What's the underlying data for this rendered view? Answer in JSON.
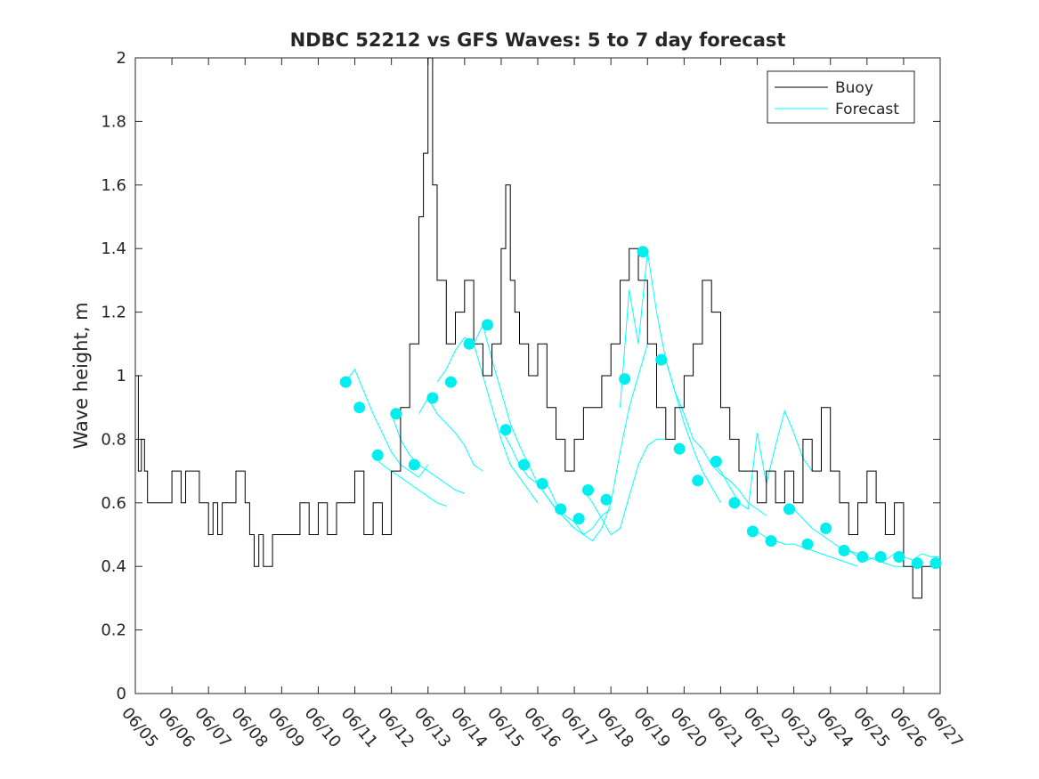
{
  "chart_data": {
    "type": "line",
    "title": "NDBC 52212 vs GFS Waves: 5 to 7 day forecast",
    "xlabel": "",
    "ylabel": "Wave height, m",
    "xlim": [
      "06/05",
      "06/27"
    ],
    "ylim": [
      0,
      2
    ],
    "x_ticks": [
      "06/05",
      "06/06",
      "06/07",
      "06/08",
      "06/09",
      "06/10",
      "06/11",
      "06/12",
      "06/13",
      "06/14",
      "06/15",
      "06/16",
      "06/17",
      "06/18",
      "06/19",
      "06/20",
      "06/21",
      "06/22",
      "06/23",
      "06/24",
      "06/25",
      "06/26",
      "06/27"
    ],
    "y_ticks": [
      0,
      0.2,
      0.4,
      0.6,
      0.8,
      1,
      1.2,
      1.4,
      1.6,
      1.8,
      2
    ],
    "y_tick_labels": [
      "0",
      "0.2",
      "0.4",
      "0.6",
      "0.8",
      "1",
      "1.2",
      "1.4",
      "1.6",
      "1.8",
      "2"
    ],
    "legend_position": "top-right",
    "grid": false,
    "colors": {
      "buoy": "#000000",
      "forecast": "#00ffff",
      "marker": "#00eeee"
    },
    "series": [
      {
        "name": "Buoy",
        "style": "line",
        "x": [
          "06/05 00:00",
          "06/05 02:00",
          "06/05 04:00",
          "06/05 06:00",
          "06/05 08:00",
          "06/05 12:00",
          "06/06 00:00",
          "06/06 06:00",
          "06/06 09:00",
          "06/06 12:00",
          "06/06 18:00",
          "06/07 00:00",
          "06/07 03:00",
          "06/07 06:00",
          "06/07 09:00",
          "06/07 12:00",
          "06/07 18:00",
          "06/08 00:00",
          "06/08 03:00",
          "06/08 06:00",
          "06/08 09:00",
          "06/08 12:00",
          "06/08 18:00",
          "06/09 00:00",
          "06/09 06:00",
          "06/09 12:00",
          "06/09 18:00",
          "06/10 00:00",
          "06/10 06:00",
          "06/10 12:00",
          "06/10 18:00",
          "06/11 00:00",
          "06/11 06:00",
          "06/11 12:00",
          "06/11 18:00",
          "06/12 00:00",
          "06/12 06:00",
          "06/12 12:00",
          "06/12 18:00",
          "06/12 21:00",
          "06/13 00:00",
          "06/13 03:00",
          "06/13 06:00",
          "06/13 12:00",
          "06/13 18:00",
          "06/14 00:00",
          "06/14 06:00",
          "06/14 12:00",
          "06/14 18:00",
          "06/15 00:00",
          "06/15 03:00",
          "06/15 06:00",
          "06/15 09:00",
          "06/15 12:00",
          "06/15 18:00",
          "06/16 00:00",
          "06/16 06:00",
          "06/16 12:00",
          "06/16 18:00",
          "06/17 00:00",
          "06/17 06:00",
          "06/17 12:00",
          "06/17 18:00",
          "06/18 00:00",
          "06/18 06:00",
          "06/18 12:00",
          "06/18 18:00",
          "06/19 00:00",
          "06/19 06:00",
          "06/19 12:00",
          "06/19 18:00",
          "06/20 00:00",
          "06/20 06:00",
          "06/20 12:00",
          "06/20 18:00",
          "06/21 00:00",
          "06/21 06:00",
          "06/21 12:00",
          "06/21 18:00",
          "06/22 00:00",
          "06/22 06:00",
          "06/22 12:00",
          "06/22 18:00",
          "06/23 00:00",
          "06/23 06:00",
          "06/23 12:00",
          "06/23 18:00",
          "06/24 00:00",
          "06/24 06:00",
          "06/24 12:00",
          "06/24 18:00",
          "06/25 00:00",
          "06/25 06:00",
          "06/25 12:00",
          "06/25 18:00",
          "06/26 00:00",
          "06/26 03:00",
          "06/26 06:00",
          "06/26 12:00",
          "06/26 18:00",
          "06/27 00:00"
        ],
        "values": [
          1.0,
          0.7,
          0.8,
          0.7,
          0.6,
          0.6,
          0.7,
          0.6,
          0.7,
          0.7,
          0.6,
          0.5,
          0.6,
          0.5,
          0.6,
          0.6,
          0.7,
          0.6,
          0.5,
          0.4,
          0.5,
          0.4,
          0.5,
          0.5,
          0.5,
          0.6,
          0.5,
          0.6,
          0.5,
          0.6,
          0.6,
          0.7,
          0.5,
          0.6,
          0.5,
          0.7,
          0.9,
          1.1,
          1.5,
          1.7,
          2.0,
          1.6,
          1.3,
          1.1,
          1.2,
          1.3,
          1.1,
          1.0,
          1.1,
          1.4,
          1.6,
          1.3,
          1.2,
          1.1,
          1.0,
          1.1,
          0.9,
          0.8,
          0.7,
          0.8,
          0.9,
          0.9,
          1.0,
          1.1,
          1.3,
          1.4,
          1.3,
          1.1,
          0.9,
          0.8,
          0.9,
          1.0,
          1.1,
          1.3,
          1.2,
          0.9,
          0.8,
          0.7,
          0.7,
          0.6,
          0.7,
          0.6,
          0.7,
          0.6,
          0.8,
          0.7,
          0.9,
          0.7,
          0.6,
          0.5,
          0.6,
          0.7,
          0.6,
          0.5,
          0.6,
          0.4,
          0.4,
          0.3,
          0.4,
          0.4,
          0.4
        ]
      },
      {
        "name": "Forecast",
        "style": "markers",
        "x": [
          "06/10 18:00",
          "06/11 03:00",
          "06/11 15:00",
          "06/12 03:00",
          "06/12 15:00",
          "06/13 03:00",
          "06/13 15:00",
          "06/14 03:00",
          "06/14 15:00",
          "06/15 03:00",
          "06/15 15:00",
          "06/16 03:00",
          "06/16 15:00",
          "06/17 03:00",
          "06/17 09:00",
          "06/17 21:00",
          "06/18 09:00",
          "06/18 21:00",
          "06/19 09:00",
          "06/19 21:00",
          "06/20 09:00",
          "06/20 21:00",
          "06/21 09:00",
          "06/21 21:00",
          "06/22 09:00",
          "06/22 21:00",
          "06/23 09:00",
          "06/23 21:00",
          "06/24 09:00",
          "06/24 21:00",
          "06/25 09:00",
          "06/25 21:00",
          "06/26 09:00",
          "06/26 21:00"
        ],
        "values": [
          0.98,
          0.9,
          0.75,
          0.88,
          0.72,
          0.93,
          0.98,
          1.1,
          1.16,
          0.83,
          0.72,
          0.66,
          0.58,
          0.55,
          0.64,
          0.61,
          0.99,
          1.39,
          1.05,
          0.77,
          0.67,
          0.73,
          0.6,
          0.51,
          0.48,
          0.58,
          0.47,
          0.52,
          0.45,
          0.43,
          0.43,
          0.43,
          0.41,
          0.41
        ]
      }
    ],
    "forecast_traces": [
      {
        "x": [
          "06/10 18:00",
          "06/11 00:00",
          "06/11 06:00",
          "06/11 12:00",
          "06/11 18:00",
          "06/12 00:00",
          "06/12 06:00",
          "06/12 12:00",
          "06/12 18:00",
          "06/13 00:00"
        ],
        "values": [
          0.98,
          1.02,
          0.95,
          0.88,
          0.82,
          0.76,
          0.72,
          0.7,
          0.68,
          0.72
        ]
      },
      {
        "x": [
          "06/11 12:00",
          "06/11 18:00",
          "06/12 00:00",
          "06/12 06:00",
          "06/12 12:00",
          "06/12 18:00",
          "06/13 00:00",
          "06/13 06:00",
          "06/13 12:00"
        ],
        "values": [
          0.75,
          0.72,
          0.7,
          0.68,
          0.66,
          0.64,
          0.62,
          0.6,
          0.59
        ]
      },
      {
        "x": [
          "06/12 00:00",
          "06/12 06:00",
          "06/12 12:00",
          "06/12 18:00",
          "06/13 00:00",
          "06/13 06:00",
          "06/13 12:00",
          "06/13 18:00",
          "06/14 00:00"
        ],
        "values": [
          0.88,
          0.8,
          0.75,
          0.72,
          0.7,
          0.68,
          0.66,
          0.64,
          0.63
        ]
      },
      {
        "x": [
          "06/12 18:00",
          "06/13 00:00",
          "06/13 06:00",
          "06/13 12:00",
          "06/13 18:00",
          "06/14 00:00",
          "06/14 06:00",
          "06/14 12:00"
        ],
        "values": [
          0.88,
          0.93,
          0.88,
          0.85,
          0.82,
          0.78,
          0.72,
          0.7
        ]
      },
      {
        "x": [
          "06/13 06:00",
          "06/13 12:00",
          "06/13 18:00",
          "06/14 00:00",
          "06/14 06:00",
          "06/14 12:00",
          "06/14 18:00",
          "06/15 00:00",
          "06/15 06:00",
          "06/15 12:00",
          "06/15 18:00",
          "06/16 00:00"
        ],
        "values": [
          0.98,
          1.02,
          1.08,
          1.12,
          1.1,
          1.0,
          0.9,
          0.8,
          0.72,
          0.68,
          0.64,
          0.6
        ]
      },
      {
        "x": [
          "06/14 06:00",
          "06/14 12:00",
          "06/14 18:00",
          "06/15 00:00",
          "06/15 06:00",
          "06/15 12:00",
          "06/15 18:00",
          "06/16 00:00",
          "06/16 06:00",
          "06/16 12:00",
          "06/16 18:00",
          "06/17 00:00"
        ],
        "values": [
          1.1,
          1.16,
          1.05,
          0.95,
          0.85,
          0.78,
          0.72,
          0.66,
          0.62,
          0.58,
          0.55,
          0.52
        ]
      },
      {
        "x": [
          "06/15 00:00",
          "06/15 06:00",
          "06/15 12:00",
          "06/15 18:00",
          "06/16 00:00",
          "06/16 06:00",
          "06/16 12:00",
          "06/16 18:00",
          "06/17 00:00",
          "06/17 06:00",
          "06/17 12:00",
          "06/17 18:00",
          "06/18 00:00"
        ],
        "values": [
          0.83,
          0.78,
          0.72,
          0.68,
          0.66,
          0.62,
          0.58,
          0.55,
          0.52,
          0.5,
          0.52,
          0.56,
          0.58
        ]
      },
      {
        "x": [
          "06/16 06:00",
          "06/16 12:00",
          "06/16 18:00",
          "06/17 00:00",
          "06/17 06:00",
          "06/17 12:00",
          "06/17 18:00",
          "06/18 00:00",
          "06/18 06:00",
          "06/18 12:00",
          "06/18 18:00",
          "06/19 00:00"
        ],
        "values": [
          0.66,
          0.6,
          0.56,
          0.54,
          0.5,
          0.48,
          0.52,
          0.6,
          0.76,
          0.9,
          1.0,
          1.1
        ]
      },
      {
        "x": [
          "06/17 06:00",
          "06/17 12:00",
          "06/17 18:00",
          "06/18 00:00",
          "06/18 06:00",
          "06/18 12:00",
          "06/18 18:00",
          "06/19 00:00",
          "06/19 06:00",
          "06/19 12:00"
        ],
        "values": [
          0.64,
          0.6,
          0.55,
          0.5,
          0.52,
          0.62,
          0.72,
          0.78,
          0.8,
          0.8
        ]
      },
      {
        "x": [
          "06/18 06:00",
          "06/18 12:00",
          "06/18 18:00",
          "06/19 00:00",
          "06/19 06:00",
          "06/19 12:00",
          "06/19 18:00",
          "06/20 00:00",
          "06/20 06:00",
          "06/20 12:00",
          "06/20 18:00",
          "06/21 00:00"
        ],
        "values": [
          0.9,
          1.27,
          1.1,
          1.39,
          1.2,
          1.05,
          0.95,
          0.85,
          0.77,
          0.7,
          0.65,
          0.6
        ]
      },
      {
        "x": [
          "06/19 12:00",
          "06/19 18:00",
          "06/20 00:00",
          "06/20 06:00",
          "06/20 12:00",
          "06/20 18:00",
          "06/21 00:00",
          "06/21 06:00",
          "06/21 12:00",
          "06/21 18:00",
          "06/22 00:00",
          "06/22 06:00"
        ],
        "values": [
          1.05,
          0.95,
          0.88,
          0.8,
          0.77,
          0.72,
          0.69,
          0.67,
          0.64,
          0.6,
          0.58,
          0.56
        ]
      },
      {
        "x": [
          "06/20 18:00",
          "06/21 00:00",
          "06/21 06:00",
          "06/21 12:00",
          "06/21 18:00",
          "06/22 00:00",
          "06/22 06:00",
          "06/22 12:00",
          "06/22 18:00",
          "06/23 00:00",
          "06/23 06:00",
          "06/23 12:00"
        ],
        "values": [
          0.73,
          0.7,
          0.65,
          0.6,
          0.58,
          0.82,
          0.66,
          0.78,
          0.89,
          0.82,
          0.74,
          0.7
        ]
      },
      {
        "x": [
          "06/22 00:00",
          "06/22 06:00",
          "06/22 12:00",
          "06/22 18:00",
          "06/23 00:00",
          "06/23 06:00",
          "06/23 12:00",
          "06/23 18:00",
          "06/24 00:00",
          "06/24 06:00",
          "06/24 12:00",
          "06/24 18:00"
        ],
        "values": [
          0.51,
          0.49,
          0.48,
          0.47,
          0.47,
          0.46,
          0.45,
          0.44,
          0.43,
          0.42,
          0.41,
          0.4
        ]
      },
      {
        "x": [
          "06/23 00:00",
          "06/23 06:00",
          "06/23 12:00",
          "06/23 18:00",
          "06/24 00:00",
          "06/24 06:00",
          "06/24 12:00",
          "06/24 18:00",
          "06/25 00:00",
          "06/25 06:00",
          "06/25 12:00",
          "06/25 18:00",
          "06/26 00:00"
        ],
        "values": [
          0.58,
          0.55,
          0.52,
          0.5,
          0.48,
          0.46,
          0.45,
          0.44,
          0.43,
          0.42,
          0.41,
          0.4,
          0.4
        ]
      },
      {
        "x": [
          "06/24 12:00",
          "06/24 18:00",
          "06/25 00:00",
          "06/25 06:00",
          "06/25 12:00",
          "06/25 18:00",
          "06/26 00:00",
          "06/26 06:00",
          "06/26 12:00",
          "06/26 18:00",
          "06/27 00:00"
        ],
        "values": [
          0.45,
          0.43,
          0.42,
          0.43,
          0.42,
          0.44,
          0.43,
          0.42,
          0.44,
          0.43,
          0.43
        ]
      }
    ]
  },
  "legend": {
    "buoy_label": "Buoy",
    "forecast_label": "Forecast"
  }
}
